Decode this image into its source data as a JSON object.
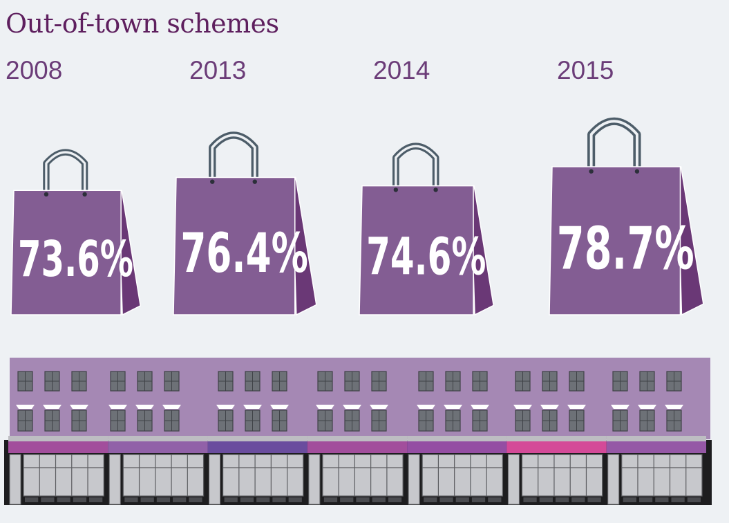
{
  "title": "Out-of-town schemes",
  "chart_data": {
    "type": "bar",
    "title": "Out-of-town schemes",
    "categories": [
      "2008",
      "2013",
      "2014",
      "2015"
    ],
    "values": [
      73.6,
      76.4,
      74.6,
      78.7
    ],
    "value_labels": [
      "73.6%",
      "76.4%",
      "74.6%",
      "78.7%"
    ],
    "unit": "%",
    "ylim": [
      0,
      100
    ],
    "grid": false,
    "legend": "none"
  },
  "colors": {
    "bag_front": "#835d93",
    "bag_side": "#6a3876",
    "handle": "#4d5d69",
    "label": "#6b3c78",
    "title": "#5e1f5e",
    "building": "#a588b4",
    "awnings": [
      "#a24e9c",
      "#9161a8",
      "#6a4d9e",
      "#a24e9c",
      "#944ea3",
      "#d44a98",
      "#9558a6"
    ]
  }
}
